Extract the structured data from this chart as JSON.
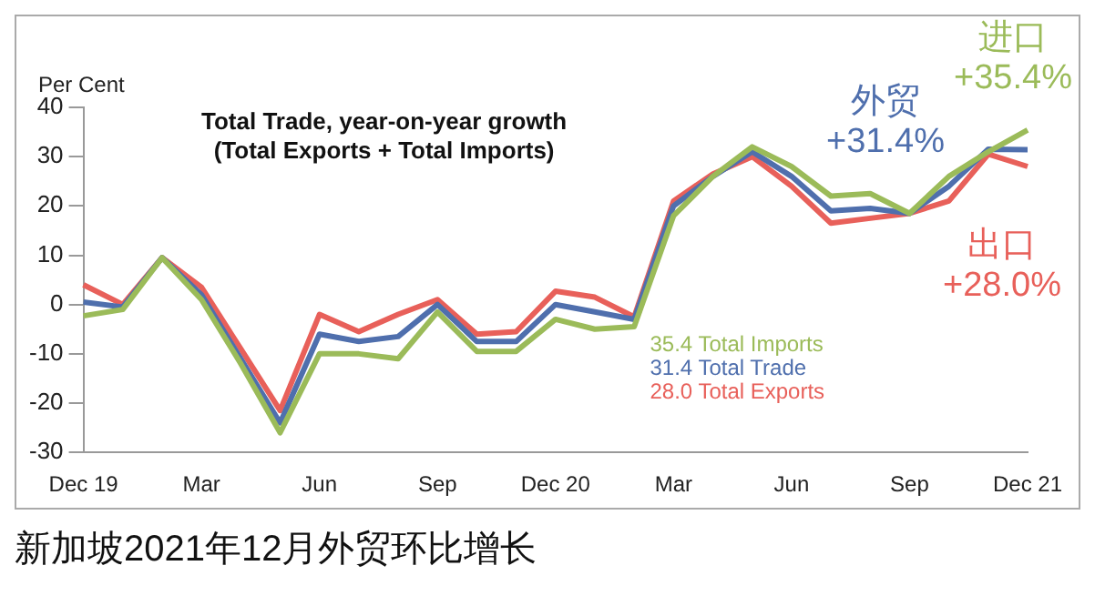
{
  "chart_data": {
    "type": "line",
    "title": "Total Trade, year-on-year growth\n(Total Exports + Total Imports)",
    "ylabel": "Per Cent",
    "categories": [
      "Dec 19",
      null,
      null,
      "Mar",
      null,
      null,
      "Jun",
      null,
      null,
      "Sep",
      null,
      null,
      "Dec 20",
      null,
      null,
      "Mar",
      null,
      null,
      "Jun",
      null,
      null,
      "Sep",
      null,
      null,
      "Dec 21"
    ],
    "series": [
      {
        "name": "35.4 Total Imports",
        "color": "#9bbb59",
        "values": [
          -2.3,
          -1,
          9.5,
          1,
          -12,
          -26,
          -10,
          -10,
          -11,
          -1.5,
          -9.5,
          -9.5,
          -3,
          -5,
          -4.5,
          18,
          26,
          32,
          28,
          22,
          22.5,
          18.5,
          26,
          31,
          35.4
        ]
      },
      {
        "name": "31.4 Total Trade",
        "color": "#4f6fad",
        "values": [
          0.5,
          -0.5,
          9.5,
          2,
          -11,
          -24,
          -6,
          -7.5,
          -6.5,
          0,
          -7.5,
          -7.5,
          0,
          -1.5,
          -3,
          20,
          26,
          31,
          26,
          19,
          19.5,
          18.5,
          24,
          31.5,
          31.4
        ]
      },
      {
        "name": "28.0 Total Exports",
        "color": "#e8605a",
        "values": [
          4,
          0,
          9.5,
          3.5,
          -9,
          -21.5,
          -2,
          -5.5,
          -2,
          1,
          -6,
          -5.5,
          2.7,
          1.5,
          -2.5,
          21,
          26.5,
          30,
          24,
          16.5,
          17.5,
          18.5,
          21,
          30.5,
          28.0
        ]
      }
    ],
    "ylim": [
      -30,
      40
    ],
    "yticks": [
      -30,
      -20,
      -10,
      0,
      10,
      20,
      30,
      40
    ],
    "grid": false,
    "legend": "bottom",
    "marker": "none",
    "line_style": "solid",
    "annotations": [
      {
        "text": "进口\n+35.4%",
        "x": "Dec 21",
        "y": 35.4
      },
      {
        "text": "外贸\n+31.4%",
        "x": "Dec 21",
        "y": 31.4
      },
      {
        "text": "出口\n+28.0%",
        "x": "Dec 21",
        "y": 28.0
      },
      "新加坡2021年12月外贸环比增长"
    ]
  }
}
